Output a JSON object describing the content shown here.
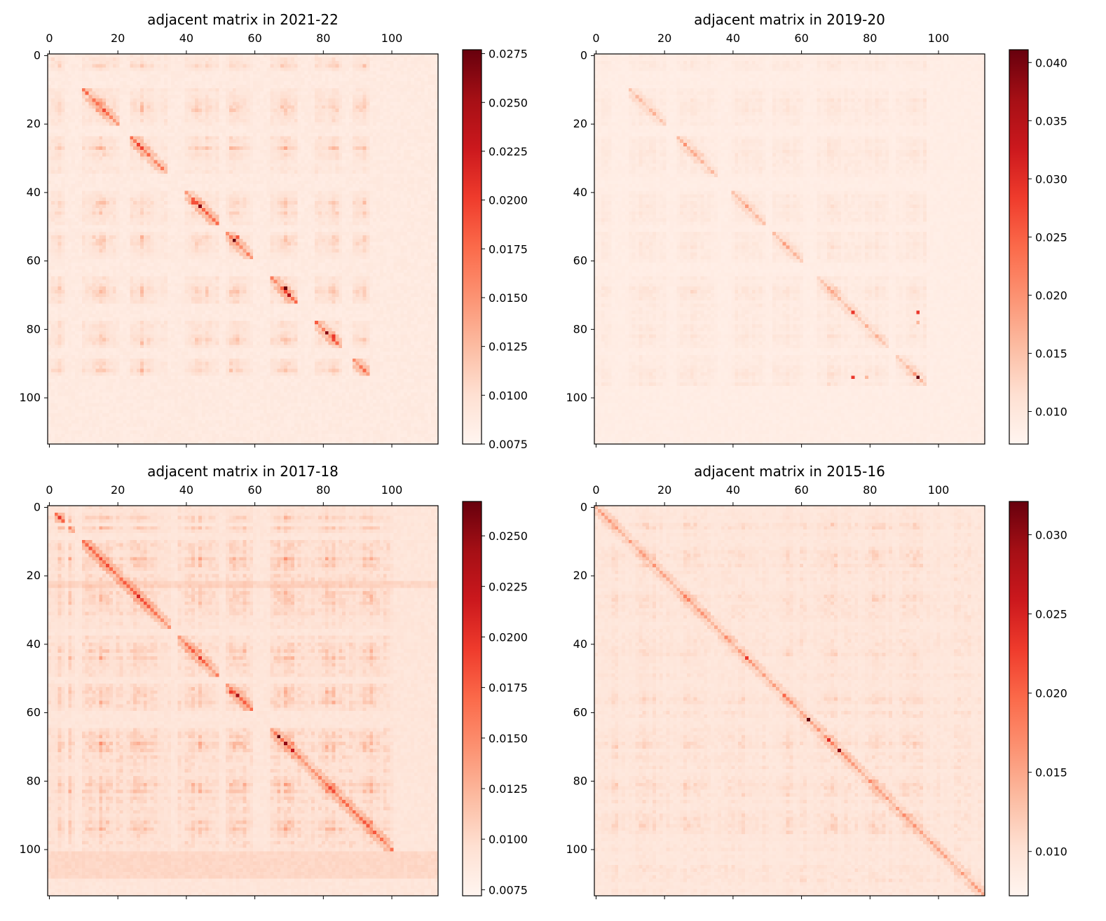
{
  "figure": {
    "colormap": "Reds",
    "colormap_stops": [
      "#fff5f0",
      "#fee0d2",
      "#fcbba1",
      "#fc9272",
      "#fb6a4a",
      "#ef3b2c",
      "#cb181d",
      "#a50f15",
      "#67000d"
    ]
  },
  "chart_data": [
    {
      "type": "heatmap",
      "title": "adjacent matrix in 2021-22",
      "matrix_size": 114,
      "x_ticks": [
        0,
        20,
        40,
        60,
        80,
        100
      ],
      "y_ticks": [
        0,
        20,
        40,
        60,
        80,
        100
      ],
      "colorbar_ticks": [
        "0.0075",
        "0.0100",
        "0.0125",
        "0.0150",
        "0.0175",
        "0.0200",
        "0.0225",
        "0.0250",
        "0.0275"
      ],
      "vmin": 0.0075,
      "vmax": 0.0277,
      "baseline": 0.0088,
      "seed": 7,
      "empty_rows": [
        5,
        6,
        7,
        8,
        9,
        21,
        22,
        23,
        35,
        36,
        37,
        38,
        39,
        50,
        51,
        60,
        61,
        62,
        63,
        64,
        73,
        74,
        75,
        76,
        77,
        86,
        87,
        88
      ],
      "active_max": 93,
      "block_centers": [
        5,
        15,
        27,
        44,
        55,
        69,
        82,
        91
      ],
      "block_strength": 0.0033,
      "diag_start": 10,
      "diag_end": 93,
      "diag_strength": 0.0085,
      "texture": 0.0018,
      "stripe_rows": [],
      "hotspots": [
        {
          "r": 44,
          "c": 44,
          "v": 0.0262
        },
        {
          "r": 54,
          "c": 54,
          "v": 0.0277
        },
        {
          "r": 68,
          "c": 69,
          "v": 0.0275
        },
        {
          "r": 70,
          "c": 70,
          "v": 0.024
        },
        {
          "r": 81,
          "c": 81,
          "v": 0.0265
        },
        {
          "r": 82,
          "c": 83,
          "v": 0.0205
        },
        {
          "r": 26,
          "c": 26,
          "v": 0.02
        },
        {
          "r": 11,
          "c": 11,
          "v": 0.018
        },
        {
          "r": 15,
          "c": 15,
          "v": 0.015
        },
        {
          "r": 43,
          "c": 42,
          "v": 0.019
        },
        {
          "r": 53,
          "c": 55,
          "v": 0.0185
        }
      ]
    },
    {
      "type": "heatmap",
      "title": "adjacent matrix in 2019-20",
      "matrix_size": 114,
      "x_ticks": [
        0,
        20,
        40,
        60,
        80,
        100
      ],
      "y_ticks": [
        0,
        20,
        40,
        60,
        80,
        100
      ],
      "colorbar_ticks": [
        "0.010",
        "0.015",
        "0.020",
        "0.025",
        "0.030",
        "0.035",
        "0.040"
      ],
      "vmin": 0.0072,
      "vmax": 0.0411,
      "baseline": 0.0088,
      "seed": 19,
      "empty_rows": [
        5,
        6,
        7,
        8,
        9,
        21,
        22,
        23,
        36,
        37,
        38,
        39,
        50,
        51,
        61,
        62,
        63,
        64,
        86,
        87
      ],
      "active_max": 96,
      "block_centers": [
        5,
        15,
        27,
        44,
        55,
        69,
        81,
        94
      ],
      "block_strength": 0.0022,
      "diag_start": 10,
      "diag_end": 96,
      "diag_strength": 0.0075,
      "texture": 0.002,
      "stripe_rows": [],
      "hotspots": [
        {
          "r": 75,
          "c": 75,
          "v": 0.029
        },
        {
          "r": 75,
          "c": 94,
          "v": 0.029
        },
        {
          "r": 94,
          "c": 75,
          "v": 0.029
        },
        {
          "r": 94,
          "c": 94,
          "v": 0.0411
        },
        {
          "r": 26,
          "c": 26,
          "v": 0.02
        },
        {
          "r": 44,
          "c": 44,
          "v": 0.019
        },
        {
          "r": 55,
          "c": 55,
          "v": 0.019
        },
        {
          "r": 93,
          "c": 93,
          "v": 0.02
        },
        {
          "r": 79,
          "c": 79,
          "v": 0.017
        },
        {
          "r": 94,
          "c": 79,
          "v": 0.016
        },
        {
          "r": 78,
          "c": 94,
          "v": 0.016
        }
      ]
    },
    {
      "type": "heatmap",
      "title": "adjacent matrix in 2017-18",
      "matrix_size": 114,
      "x_ticks": [
        0,
        20,
        40,
        60,
        80,
        100
      ],
      "y_ticks": [
        0,
        20,
        40,
        60,
        80,
        100
      ],
      "colorbar_ticks": [
        "0.0075",
        "0.0100",
        "0.0125",
        "0.0150",
        "0.0175",
        "0.0200",
        "0.0225",
        "0.0250"
      ],
      "vmin": 0.0072,
      "vmax": 0.0267,
      "baseline": 0.009,
      "seed": 31,
      "empty_rows": [
        5,
        8,
        9,
        36,
        37,
        50,
        51,
        60,
        61,
        62,
        63,
        64
      ],
      "active_max": 100,
      "block_centers": [
        5,
        15,
        27,
        44,
        55,
        69,
        82,
        93
      ],
      "block_strength": 0.003,
      "diag_start": 2,
      "diag_end": 100,
      "diag_strength": 0.008,
      "texture": 0.0022,
      "stripe_rows": [
        22,
        23,
        101,
        102,
        103,
        104,
        105,
        106,
        107,
        108
      ],
      "hotspots": [
        {
          "r": 67,
          "c": 67,
          "v": 0.0267
        },
        {
          "r": 69,
          "c": 69,
          "v": 0.025
        },
        {
          "r": 71,
          "c": 71,
          "v": 0.022
        },
        {
          "r": 55,
          "c": 55,
          "v": 0.024
        },
        {
          "r": 26,
          "c": 26,
          "v": 0.021
        },
        {
          "r": 44,
          "c": 44,
          "v": 0.02
        },
        {
          "r": 82,
          "c": 82,
          "v": 0.019
        },
        {
          "r": 93,
          "c": 93,
          "v": 0.018
        },
        {
          "r": 54,
          "c": 53,
          "v": 0.0195
        }
      ]
    },
    {
      "type": "heatmap",
      "title": "adjacent matrix in 2015-16",
      "matrix_size": 114,
      "x_ticks": [
        0,
        20,
        40,
        60,
        80,
        100
      ],
      "y_ticks": [
        0,
        20,
        40,
        60,
        80,
        100
      ],
      "colorbar_ticks": [
        "0.010",
        "0.015",
        "0.020",
        "0.025",
        "0.030"
      ],
      "vmin": 0.0072,
      "vmax": 0.0321,
      "baseline": 0.009,
      "seed": 43,
      "empty_rows": [],
      "active_max": 113,
      "block_centers": [
        5,
        15,
        27,
        44,
        55,
        69,
        82,
        93
      ],
      "block_strength": 0.0018,
      "diag_start": 0,
      "diag_end": 113,
      "diag_strength": 0.0075,
      "texture": 0.0024,
      "stripe_rows": [],
      "hotspots": [
        {
          "r": 62,
          "c": 62,
          "v": 0.0321
        },
        {
          "r": 71,
          "c": 71,
          "v": 0.03
        },
        {
          "r": 68,
          "c": 68,
          "v": 0.024
        },
        {
          "r": 44,
          "c": 44,
          "v": 0.023
        },
        {
          "r": 55,
          "c": 55,
          "v": 0.02
        },
        {
          "r": 26,
          "c": 26,
          "v": 0.018
        },
        {
          "r": 14,
          "c": 14,
          "v": 0.016
        },
        {
          "r": 82,
          "c": 82,
          "v": 0.016
        }
      ]
    }
  ]
}
